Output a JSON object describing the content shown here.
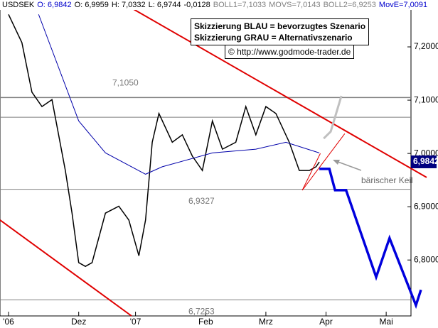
{
  "chart_data": {
    "type": "line",
    "header": [
      {
        "text": "USDSEK",
        "color": "#000000"
      },
      {
        "text": "O: 6,9842",
        "color": "#0000cc"
      },
      {
        "text": "O: 6,9959",
        "color": "#000000"
      },
      {
        "text": "H: 7,0332",
        "color": "#000000"
      },
      {
        "text": "L: 6,9744",
        "color": "#000000"
      },
      {
        "text": "-0,0128",
        "color": "#000000"
      },
      {
        "text": "BOLL1=7,1033",
        "color": "#808080"
      },
      {
        "text": "MOVS=7,0143",
        "color": "#808080"
      },
      {
        "text": "BOLL2=6,9253",
        "color": "#808080"
      },
      {
        "text": "MovE=7,0091",
        "color": "#0000cc"
      }
    ],
    "notes": [
      "Skizzierung BLAU = bevorzugtes Szenario",
      "Skizzierung GRAU = Alternativszenario"
    ],
    "copyright": "© http://www.godmode-trader.de",
    "annotation": "bärischer Keil",
    "last_value": {
      "value": 6.9842,
      "label": "6,9842"
    },
    "xlim": [
      -2.55,
      125.1
    ],
    "xticks": [
      {
        "value": 0,
        "label": "'06"
      },
      {
        "value": 21,
        "label": "Dez"
      },
      {
        "value": 38,
        "label": "'07"
      },
      {
        "value": 59,
        "label": "Feb"
      },
      {
        "value": 77,
        "label": "Mrz"
      },
      {
        "value": 95,
        "label": "Apr"
      },
      {
        "value": 113,
        "label": "Mai"
      }
    ],
    "ylim": [
      6.695,
      7.288
    ],
    "yticks": [
      {
        "value": 6.8,
        "label": "6,8000"
      },
      {
        "value": 6.9,
        "label": "6,9000"
      },
      {
        "value": 7.0,
        "label": "7,0000"
      },
      {
        "value": 7.1,
        "label": "7,1000"
      },
      {
        "value": 7.2,
        "label": "7,2000"
      }
    ],
    "levels": [
      {
        "value": 7.105,
        "label": "7,1050"
      },
      {
        "value": 7.068
      },
      {
        "value": 6.9327,
        "label": "6,9327"
      },
      {
        "value": 6.7253,
        "label": "6,7253"
      }
    ],
    "series": [
      {
        "color": "#000000",
        "linewidth": 1.5,
        "x": [
          0,
          4,
          7,
          10,
          13,
          17,
          19,
          21,
          23,
          25,
          29,
          33,
          36,
          39,
          41,
          43,
          45,
          49,
          52,
          55,
          58,
          61,
          64,
          68,
          71,
          74,
          77,
          80,
          84,
          87,
          90,
          92,
          93
        ],
        "values": [
          7.261,
          7.208,
          7.115,
          7.088,
          7.101,
          6.968,
          6.888,
          6.795,
          6.788,
          6.795,
          6.888,
          6.901,
          6.875,
          6.808,
          6.875,
          7.021,
          7.075,
          7.021,
          7.035,
          6.995,
          6.968,
          7.061,
          7.008,
          7.021,
          7.088,
          7.035,
          7.088,
          7.075,
          7.021,
          6.968,
          6.968,
          6.975,
          6.984
        ]
      },
      {
        "color": "#0000aa",
        "linewidth": 1,
        "x": [
          9,
          21,
          29,
          41,
          46,
          61,
          74,
          83,
          93
        ],
        "values": [
          7.261,
          7.061,
          7.001,
          6.961,
          6.975,
          7.001,
          7.008,
          7.021,
          7.001
        ]
      },
      {
        "color": "#e00000",
        "linewidth": 2,
        "x": [
          32.6,
          125.1
        ],
        "values": [
          7.288,
          6.955
        ]
      },
      {
        "color": "#e00000",
        "linewidth": 2,
        "x": [
          -2.55,
          36.8
        ],
        "values": [
          6.875,
          6.695
        ]
      },
      {
        "color": "#e00000",
        "linewidth": 1,
        "x": [
          87.9,
          100.6
        ],
        "values": [
          6.931,
          7.037
        ]
      },
      {
        "color": "#e00000",
        "linewidth": 1,
        "x": [
          87.9,
          93.3
        ],
        "values": [
          6.931,
          7.0
        ]
      },
      {
        "color": "#c0c0c0",
        "linewidth": 3,
        "x": [
          94.3,
          96.4,
          99.6
        ],
        "values": [
          7.028,
          7.041,
          7.108
        ]
      },
      {
        "color": "#0000dd",
        "linewidth": 3.5,
        "x": [
          93,
          96,
          97.7,
          101,
          110,
          114,
          121.9,
          123.4
        ],
        "values": [
          6.971,
          6.971,
          6.931,
          6.931,
          6.768,
          6.841,
          6.715,
          6.744
        ]
      }
    ]
  }
}
